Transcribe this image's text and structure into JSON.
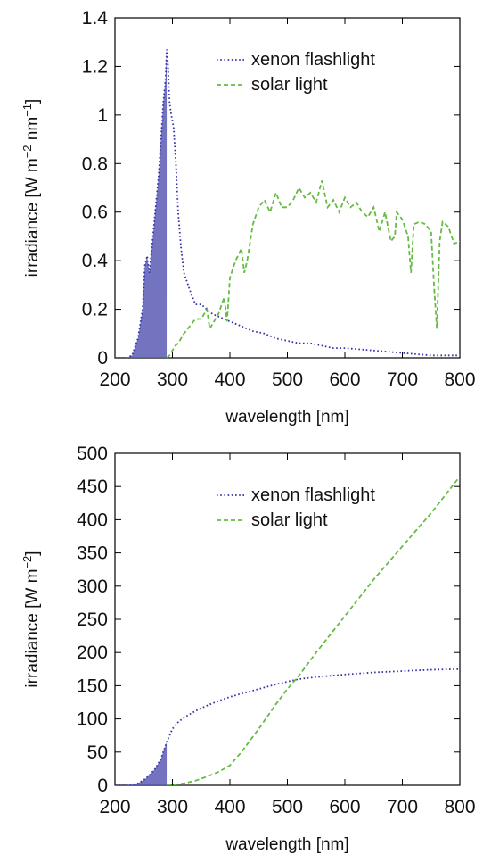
{
  "chart_data": [
    {
      "type": "line",
      "xlabel": "wavelength [nm]",
      "ylabel": "irradiance [W m^-2 nm^-1]",
      "ylabel_parts": [
        "irradiance [W m",
        "−2",
        " nm",
        "−1",
        "]"
      ],
      "xlim": [
        200,
        800
      ],
      "ylim": [
        0,
        1.4
      ],
      "x_ticks": [
        200,
        300,
        400,
        500,
        600,
        700,
        800
      ],
      "y_ticks": [
        0,
        0.2,
        0.4,
        0.6,
        0.8,
        1,
        1.2,
        1.4
      ],
      "y_tick_labels": [
        "0",
        "0.2",
        "0.4",
        "0.6",
        "0.8",
        "1",
        "1.2",
        "1.4"
      ],
      "legend_position": "top-right",
      "shaded_region": {
        "series": "xenon flashlight",
        "x_range": [
          200,
          290
        ],
        "color": "#5a5ab4"
      },
      "series": [
        {
          "name": "xenon flashlight",
          "style": "dotted",
          "color": "#3333aa",
          "x": [
            200,
            220,
            230,
            240,
            248,
            252,
            256,
            260,
            264,
            268,
            272,
            276,
            280,
            284,
            288,
            290,
            292,
            295,
            298,
            302,
            306,
            310,
            315,
            320,
            330,
            340,
            350,
            360,
            370,
            380,
            390,
            400,
            420,
            440,
            460,
            480,
            500,
            520,
            540,
            560,
            580,
            600,
            650,
            700,
            750,
            800
          ],
          "y": [
            0,
            0,
            0.01,
            0.08,
            0.2,
            0.38,
            0.42,
            0.35,
            0.45,
            0.55,
            0.65,
            0.75,
            0.9,
            1.05,
            1.15,
            1.27,
            1.22,
            1.05,
            1.0,
            0.95,
            0.8,
            0.6,
            0.45,
            0.35,
            0.28,
            0.22,
            0.22,
            0.2,
            0.18,
            0.17,
            0.16,
            0.15,
            0.13,
            0.11,
            0.1,
            0.08,
            0.07,
            0.06,
            0.06,
            0.05,
            0.04,
            0.04,
            0.03,
            0.02,
            0.01,
            0.01
          ]
        },
        {
          "name": "solar light",
          "style": "dashed",
          "color": "#66bb44",
          "x": [
            290,
            295,
            300,
            305,
            310,
            315,
            320,
            330,
            340,
            350,
            360,
            365,
            370,
            380,
            390,
            395,
            400,
            410,
            420,
            425,
            430,
            440,
            450,
            460,
            470,
            480,
            490,
            500,
            510,
            520,
            530,
            540,
            550,
            560,
            570,
            580,
            590,
            600,
            610,
            620,
            630,
            640,
            650,
            660,
            670,
            680,
            687,
            690,
            700,
            710,
            715,
            720,
            730,
            740,
            750,
            755,
            760,
            765,
            770,
            780,
            790,
            800
          ],
          "y": [
            0,
            0.01,
            0.03,
            0.05,
            0.06,
            0.08,
            0.1,
            0.13,
            0.16,
            0.16,
            0.2,
            0.12,
            0.14,
            0.18,
            0.25,
            0.15,
            0.33,
            0.4,
            0.45,
            0.35,
            0.4,
            0.55,
            0.62,
            0.65,
            0.6,
            0.68,
            0.62,
            0.62,
            0.65,
            0.7,
            0.66,
            0.68,
            0.64,
            0.73,
            0.62,
            0.65,
            0.6,
            0.66,
            0.62,
            0.64,
            0.6,
            0.58,
            0.62,
            0.52,
            0.6,
            0.48,
            0.5,
            0.6,
            0.57,
            0.5,
            0.35,
            0.55,
            0.56,
            0.55,
            0.52,
            0.3,
            0.12,
            0.48,
            0.56,
            0.54,
            0.47,
            0.48
          ]
        }
      ]
    },
    {
      "type": "line",
      "xlabel": "wavelength [nm]",
      "ylabel": "irradiance [W m^-2]",
      "ylabel_parts": [
        "irradiance [W m",
        "−2",
        "]",
        "",
        ""
      ],
      "xlim": [
        200,
        800
      ],
      "ylim": [
        0,
        500
      ],
      "x_ticks": [
        200,
        300,
        400,
        500,
        600,
        700,
        800
      ],
      "y_ticks": [
        0,
        50,
        100,
        150,
        200,
        250,
        300,
        350,
        400,
        450,
        500
      ],
      "y_tick_labels": [
        "0",
        "50",
        "100",
        "150",
        "200",
        "250",
        "300",
        "350",
        "400",
        "450",
        "500"
      ],
      "legend_position": "top-right",
      "shaded_region": {
        "series": "xenon flashlight",
        "x_range": [
          200,
          290
        ],
        "color": "#5a5ab4"
      },
      "series": [
        {
          "name": "xenon flashlight",
          "style": "dotted",
          "color": "#3333aa",
          "x": [
            200,
            220,
            230,
            240,
            250,
            260,
            270,
            280,
            290,
            300,
            310,
            320,
            340,
            360,
            380,
            400,
            420,
            450,
            480,
            500,
            520,
            550,
            600,
            650,
            700,
            750,
            800
          ],
          "y": [
            0,
            0,
            1,
            3,
            8,
            15,
            25,
            40,
            65,
            85,
            95,
            102,
            112,
            120,
            127,
            133,
            138,
            145,
            152,
            156,
            160,
            163,
            167,
            170,
            172,
            174,
            175
          ]
        },
        {
          "name": "solar light",
          "style": "dashed",
          "color": "#66bb44",
          "x": [
            290,
            300,
            320,
            340,
            360,
            380,
            400,
            420,
            450,
            480,
            500,
            520,
            550,
            600,
            650,
            700,
            750,
            800
          ],
          "y": [
            0,
            0.5,
            3,
            7,
            13,
            20,
            30,
            50,
            85,
            122,
            145,
            165,
            200,
            255,
            310,
            360,
            410,
            465
          ]
        }
      ]
    }
  ]
}
